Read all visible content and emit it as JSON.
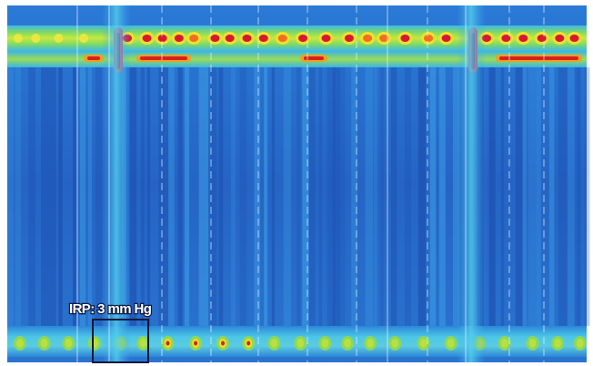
{
  "annotation": {
    "label": "IRP: 3 mm Hg"
  }
}
